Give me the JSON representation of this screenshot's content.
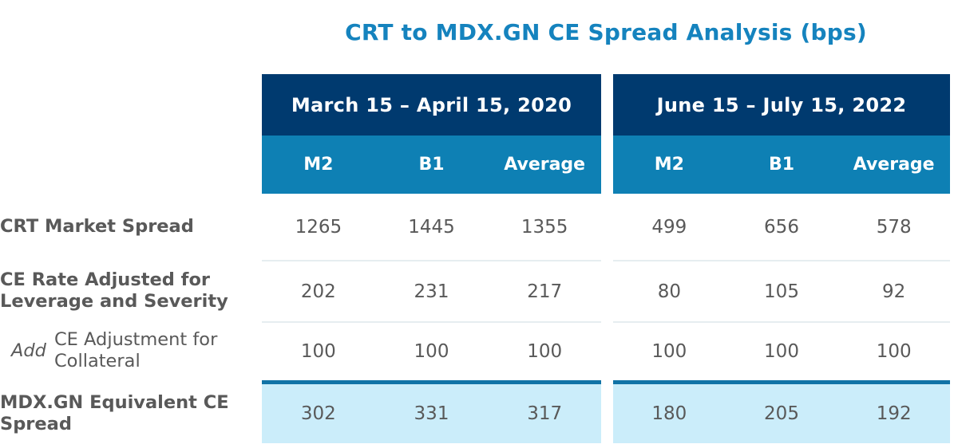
{
  "title": "CRT to MDX.GN CE Spread Analysis (bps)",
  "colors": {
    "title_blue": "#1583BE",
    "header_navy": "#003A6F",
    "subheader_teal": "#0E80B4",
    "highlight_row_blue": "#CBEDFA",
    "thick_rule_blue": "#1173A6",
    "text_gray": "#595959"
  },
  "row_labels": {
    "0": "CRT Market Spread",
    "1": "CE Rate Adjusted for Leverage and Severity",
    "2": {
      "prefix": "Add",
      "text": "CE Adjustment for Collateral"
    },
    "3": "MDX.GN Equivalent CE Spread"
  },
  "tables": [
    {
      "period": "March 15 – April 15, 2020",
      "columns": [
        "M2",
        "B1",
        "Average"
      ],
      "rows": [
        [
          "1265",
          "1445",
          "1355"
        ],
        [
          "202",
          "231",
          "217"
        ],
        [
          "100",
          "100",
          "100"
        ],
        [
          "302",
          "331",
          "317"
        ]
      ]
    },
    {
      "period": "June 15 – July 15, 2022",
      "columns": [
        "M2",
        "B1",
        "Average"
      ],
      "rows": [
        [
          "499",
          "656",
          "578"
        ],
        [
          "80",
          "105",
          "92"
        ],
        [
          "100",
          "100",
          "100"
        ],
        [
          "180",
          "205",
          "192"
        ]
      ]
    }
  ],
  "chart_data": {
    "type": "table",
    "title": "CRT to MDX.GN CE Spread Analysis (bps)",
    "column_groups": [
      "March 15 – April 15, 2020",
      "June 15 – July 15, 2022"
    ],
    "columns": [
      "M2",
      "B1",
      "Average",
      "M2",
      "B1",
      "Average"
    ],
    "rows": [
      {
        "label": "CRT Market Spread",
        "values": [
          1265,
          1445,
          1355,
          499,
          656,
          578
        ]
      },
      {
        "label": "CE Rate Adjusted for Leverage and Severity",
        "values": [
          202,
          231,
          217,
          80,
          105,
          92
        ]
      },
      {
        "label": "Add CE Adjustment for Collateral",
        "values": [
          100,
          100,
          100,
          100,
          100,
          100
        ]
      },
      {
        "label": "MDX.GN Equivalent CE Spread",
        "values": [
          302,
          331,
          317,
          180,
          205,
          192
        ],
        "highlighted": true
      }
    ]
  }
}
